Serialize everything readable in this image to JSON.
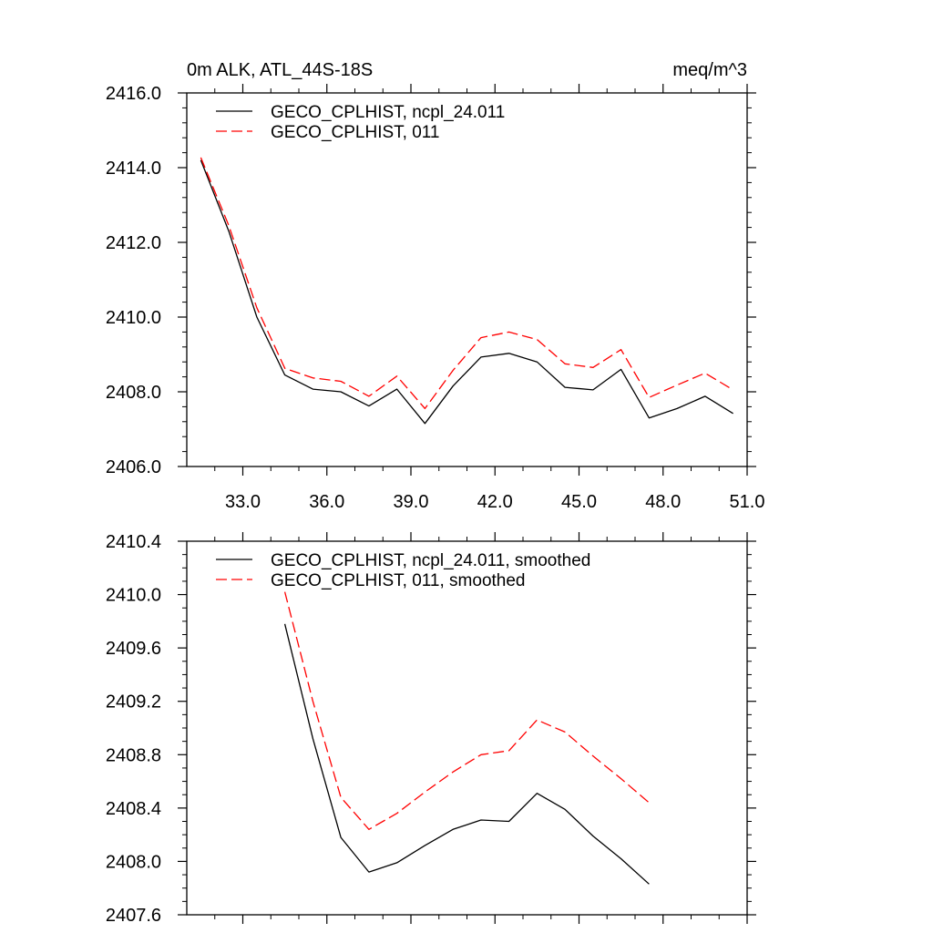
{
  "chart_data": [
    {
      "type": "line",
      "title": "0m ALK, ATL_44S-18S",
      "units": "meq/m^3",
      "xlabel": "",
      "ylabel": "",
      "xlim": [
        31.0,
        51.0
      ],
      "ylim": [
        2406.0,
        2416.0
      ],
      "x_ticks": [
        33.0,
        36.0,
        39.0,
        42.0,
        45.0,
        48.0,
        51.0
      ],
      "x_tick_labels": [
        "33.0",
        "36.0",
        "39.0",
        "42.0",
        "45.0",
        "48.0",
        "51.0"
      ],
      "y_ticks": [
        2406.0,
        2408.0,
        2410.0,
        2412.0,
        2414.0,
        2416.0
      ],
      "y_tick_labels": [
        "2406.0",
        "2408.0",
        "2410.0",
        "2412.0",
        "2414.0",
        "2416.0"
      ],
      "legend_position": "top-left",
      "x": [
        31.5,
        32.5,
        33.5,
        34.5,
        35.5,
        36.5,
        37.5,
        38.5,
        39.5,
        40.5,
        41.5,
        42.5,
        43.5,
        44.5,
        45.5,
        46.5,
        47.5,
        48.5,
        49.5,
        50.5
      ],
      "series": [
        {
          "name": "GECO_CPLHIST, ncpl_24.011",
          "color": "#000000",
          "dash": "solid",
          "values": [
            2414.2,
            2412.3,
            2410.0,
            2408.45,
            2408.07,
            2408.0,
            2407.62,
            2408.07,
            2407.15,
            2408.15,
            2408.93,
            2409.03,
            2408.8,
            2408.12,
            2408.05,
            2408.6,
            2407.3,
            2407.55,
            2407.88,
            2407.42
          ]
        },
        {
          "name": "GECO_CPLHIST, 011",
          "color": "#ff0000",
          "dash": "dashed",
          "values": [
            2414.27,
            2412.45,
            2410.25,
            2408.63,
            2408.37,
            2408.28,
            2407.88,
            2408.42,
            2407.55,
            2408.57,
            2409.45,
            2409.6,
            2409.4,
            2408.75,
            2408.65,
            2409.13,
            2407.85,
            2408.18,
            2408.5,
            2408.05
          ]
        }
      ]
    },
    {
      "type": "line",
      "title": "",
      "xlabel": "",
      "ylabel": "",
      "xlim": [
        31.0,
        51.0
      ],
      "ylim": [
        2407.6,
        2410.4
      ],
      "x_ticks": [
        33.0,
        36.0,
        39.0,
        42.0,
        45.0,
        48.0,
        51.0
      ],
      "y_ticks": [
        2407.6,
        2408.0,
        2408.4,
        2408.8,
        2409.2,
        2409.6,
        2410.0,
        2410.4
      ],
      "y_tick_labels": [
        "2407.6",
        "2408.0",
        "2408.4",
        "2408.8",
        "2409.2",
        "2409.6",
        "2410.0",
        "2410.4"
      ],
      "legend_position": "top-left",
      "x": [
        34.5,
        35.5,
        36.5,
        37.5,
        38.5,
        39.5,
        40.5,
        41.5,
        42.5,
        43.5,
        44.5,
        45.5,
        46.5,
        47.5
      ],
      "series": [
        {
          "name": "GECO_CPLHIST, ncpl_24.011, smoothed",
          "color": "#000000",
          "dash": "solid",
          "values": [
            2409.78,
            2408.92,
            2408.18,
            2407.92,
            2407.99,
            2408.12,
            2408.24,
            2408.31,
            2408.3,
            2408.51,
            2408.39,
            2408.19,
            2408.02,
            2407.83
          ]
        },
        {
          "name": "GECO_CPLHIST, 011, smoothed",
          "color": "#ff0000",
          "dash": "dashed",
          "values": [
            2410.02,
            2409.2,
            2408.48,
            2408.24,
            2408.36,
            2408.52,
            2408.67,
            2408.8,
            2408.83,
            2409.06,
            2408.97,
            2408.79,
            2408.62,
            2408.44
          ]
        }
      ]
    }
  ]
}
